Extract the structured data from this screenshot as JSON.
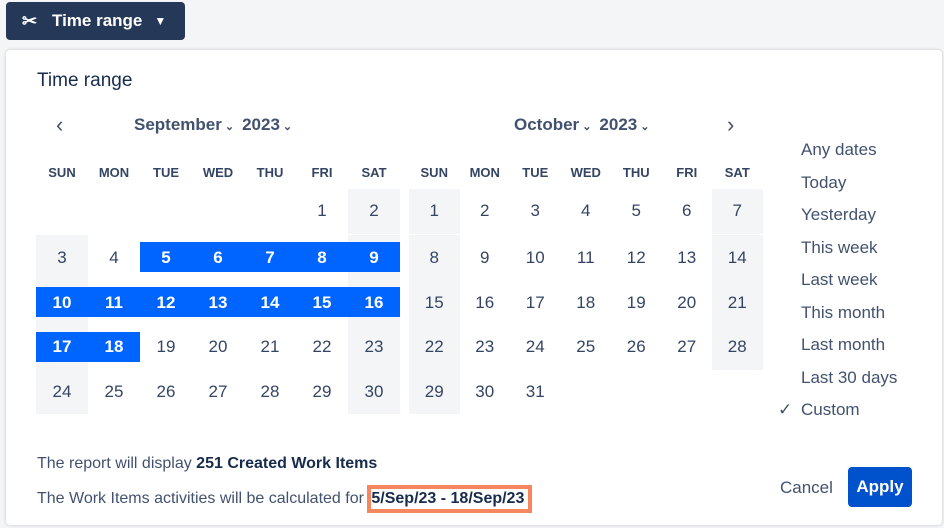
{
  "trigger": {
    "label": "Time range",
    "icon": "scissors-icon"
  },
  "popup": {
    "title": "Time range"
  },
  "weekdays": [
    "SUN",
    "MON",
    "TUE",
    "WED",
    "THU",
    "FRI",
    "SAT"
  ],
  "calendars": [
    {
      "month": "September",
      "year": "2023",
      "first_weekday": 5,
      "days": 30
    },
    {
      "month": "October",
      "year": "2023",
      "first_weekday": 0,
      "days": 31
    }
  ],
  "selection": {
    "month": "September",
    "start": 5,
    "end": 18
  },
  "presets": [
    {
      "label": "Any dates"
    },
    {
      "label": "Today"
    },
    {
      "label": "Yesterday"
    },
    {
      "label": "This week"
    },
    {
      "label": "Last week"
    },
    {
      "label": "This month"
    },
    {
      "label": "Last month"
    },
    {
      "label": "Last 30 days"
    },
    {
      "label": "Custom",
      "checked": true
    }
  ],
  "footer": {
    "line1_prefix": "The report will display ",
    "line1_count": "251",
    "line1_suffix": " Created Work Items",
    "line2_prefix": "The Work Items activities will be calculated for ",
    "line2_range": "5/Sep/23 - 18/Sep/23"
  },
  "buttons": {
    "cancel": "Cancel",
    "apply": "Apply"
  },
  "colors": {
    "selected": "#0065ff",
    "primary": "#0052cc",
    "highlight": "#f5865e",
    "trigger_bg": "#253858"
  }
}
